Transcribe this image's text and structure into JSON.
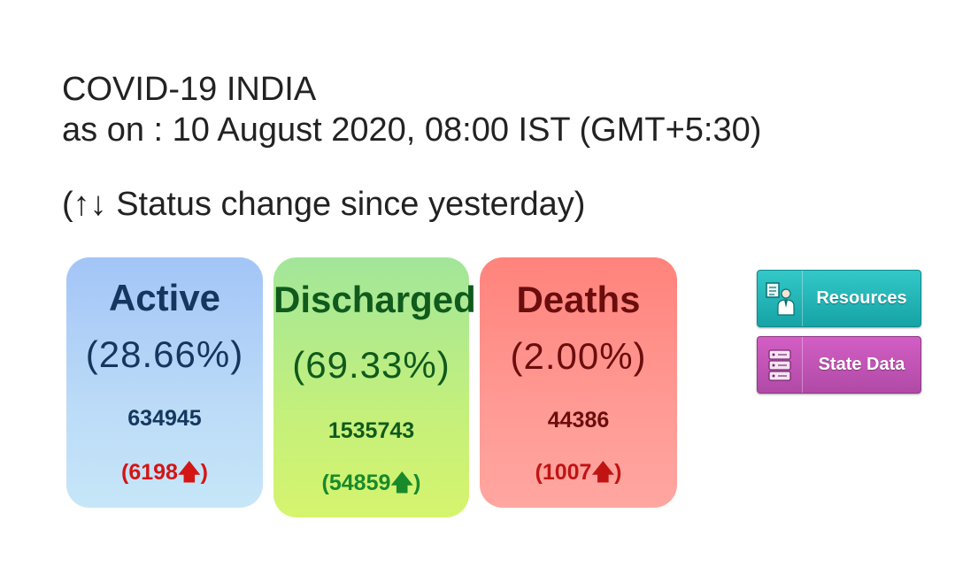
{
  "header": {
    "title": "COVID-19 INDIA",
    "as_on": "as on : 10 August 2020, 08:00 IST (GMT+5:30)"
  },
  "legend_note": "(↑↓ Status change since yesterday)",
  "cards": {
    "active": {
      "title": "Active",
      "percent": "(28.66%)",
      "count": "634945",
      "delta_open": "(6198",
      "arrow": "🡅",
      "delta_close": ")",
      "color": "#a3c5f7"
    },
    "discharged": {
      "title": "Discharged",
      "percent": "(69.33%)",
      "count": "1535743",
      "delta_open": "(54859",
      "arrow": "🡅",
      "delta_close": ")",
      "color": "#a2e69a"
    },
    "deaths": {
      "title": "Deaths",
      "percent": "(2.00%)",
      "count": "44386",
      "delta_open": "(1007",
      "arrow": "🡅",
      "delta_close": ")",
      "color": "#ff837c"
    }
  },
  "buttons": {
    "resources": {
      "label": "Resources",
      "icon": "resources-person-icon",
      "color": "#16a3a6"
    },
    "state_data": {
      "label": "State Data",
      "icon": "server-stack-icon",
      "color": "#b04aa6"
    }
  }
}
